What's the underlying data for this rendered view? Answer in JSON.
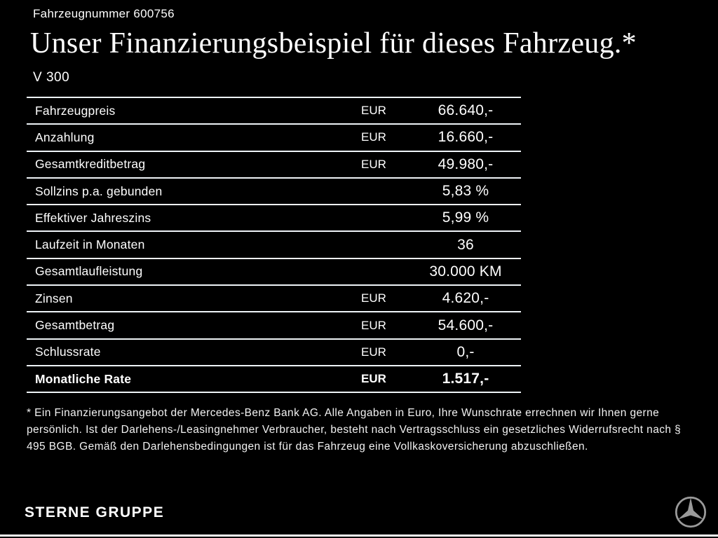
{
  "header": {
    "vehicle_number": "Fahrzeugnummer 600756",
    "title": "Unser Finanzierungsbeispiel für dieses Fahrzeug.*",
    "model": "V 300"
  },
  "table": {
    "rows": [
      {
        "label": "Fahrzeugpreis",
        "currency": "EUR",
        "value": "66.640,-",
        "bold": false
      },
      {
        "label": "Anzahlung",
        "currency": "EUR",
        "value": "16.660,-",
        "bold": false
      },
      {
        "label": "Gesamtkreditbetrag",
        "currency": "EUR",
        "value": "49.980,-",
        "bold": false
      },
      {
        "label": "Sollzins p.a. gebunden",
        "currency": "",
        "value": "5,83 %",
        "bold": false
      },
      {
        "label": "Effektiver Jahreszins",
        "currency": "",
        "value": "5,99 %",
        "bold": false
      },
      {
        "label": "Laufzeit in Monaten",
        "currency": "",
        "value": "36",
        "bold": false
      },
      {
        "label": "Gesamtlaufleistung",
        "currency": "",
        "value": "30.000 KM",
        "bold": false
      },
      {
        "label": "Zinsen",
        "currency": "EUR",
        "value": "4.620,-",
        "bold": false
      },
      {
        "label": "Gesamtbetrag",
        "currency": "EUR",
        "value": "54.600,-",
        "bold": false
      },
      {
        "label": "Schlussrate",
        "currency": "EUR",
        "value": "0,-",
        "bold": false
      },
      {
        "label": "Monatliche Rate",
        "currency": "EUR",
        "value": "1.517,-",
        "bold": true
      }
    ]
  },
  "footnote": "* Ein Finanzierungsangebot der Mercedes-Benz Bank AG. Alle Angaben in Euro, Ihre Wunschrate errechnen wir Ihnen gerne persönlich. Ist der Darlehens-/Leasingnehmer Verbraucher, besteht nach Vertragsschluss ein gesetzliches Widerrufsrecht nach § 495 BGB. Gemäß den Darlehensbedingungen ist für das Fahrzeug eine Vollkaskoversicherung abzuschließen.",
  "footer": {
    "dealer": "STERNE GRUPPE",
    "logo_icon": "mercedes-star-icon",
    "logo_color": "#9a9a9a"
  },
  "colors": {
    "background": "#000000",
    "text": "#ffffff",
    "rule": "#eef3f7"
  }
}
